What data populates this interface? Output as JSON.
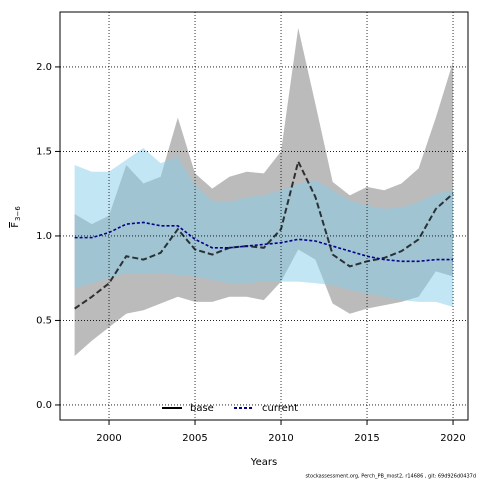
{
  "chart_data": {
    "type": "line",
    "xlabel": "Years",
    "ylabel": "F",
    "ylabel_sub": "3−6",
    "footer": "stockassessment.org, Perch_PB_most2, r14686 , git: 69d926d0437d",
    "x": [
      1998,
      1999,
      2000,
      2001,
      2002,
      2003,
      2004,
      2005,
      2006,
      2007,
      2008,
      2009,
      2010,
      2011,
      2012,
      2013,
      2014,
      2015,
      2016,
      2017,
      2018,
      2019,
      2020
    ],
    "series": [
      {
        "name": "base",
        "color": "#000000",
        "band_color": "rgba(120,120,120,0.5)",
        "values": [
          0.57,
          0.64,
          0.72,
          0.88,
          0.86,
          0.9,
          1.04,
          0.92,
          0.89,
          0.93,
          0.94,
          0.93,
          1.04,
          1.44,
          1.23,
          0.89,
          0.82,
          0.85,
          0.87,
          0.91,
          0.98,
          1.16,
          1.25
        ],
        "upper": [
          1.13,
          1.07,
          1.12,
          1.42,
          1.31,
          1.35,
          1.7,
          1.37,
          1.28,
          1.35,
          1.38,
          1.37,
          1.5,
          2.23,
          1.78,
          1.32,
          1.24,
          1.29,
          1.27,
          1.31,
          1.4,
          1.7,
          2.03
        ],
        "lower": [
          0.29,
          0.38,
          0.46,
          0.54,
          0.56,
          0.6,
          0.64,
          0.61,
          0.61,
          0.64,
          0.64,
          0.62,
          0.73,
          0.92,
          0.86,
          0.6,
          0.54,
          0.57,
          0.59,
          0.61,
          0.64,
          0.79,
          0.76
        ]
      },
      {
        "name": "current",
        "color": "#00008b",
        "band_color": "rgba(135,206,235,0.5)",
        "values": [
          0.99,
          0.99,
          1.02,
          1.07,
          1.08,
          1.06,
          1.06,
          0.98,
          0.93,
          0.93,
          0.94,
          0.95,
          0.96,
          0.98,
          0.97,
          0.94,
          0.91,
          0.88,
          0.86,
          0.85,
          0.85,
          0.86,
          0.86
        ],
        "upper": [
          1.42,
          1.38,
          1.38,
          1.45,
          1.52,
          1.43,
          1.47,
          1.3,
          1.21,
          1.2,
          1.23,
          1.24,
          1.27,
          1.31,
          1.33,
          1.27,
          1.21,
          1.18,
          1.16,
          1.17,
          1.2,
          1.25,
          1.27
        ],
        "lower": [
          0.69,
          0.72,
          0.75,
          0.78,
          0.78,
          0.78,
          0.77,
          0.76,
          0.74,
          0.72,
          0.72,
          0.73,
          0.73,
          0.73,
          0.72,
          0.71,
          0.68,
          0.66,
          0.64,
          0.62,
          0.61,
          0.61,
          0.58
        ]
      }
    ],
    "xlim": [
      1997.15,
      2020.87
    ],
    "ylim": [
      -0.089,
      2.325
    ],
    "xticks": [
      2000,
      2005,
      2010,
      2015,
      2020
    ],
    "yticks": [
      {
        "value": 0,
        "label": "0.0"
      },
      {
        "value": 0.5,
        "label": "0.5"
      },
      {
        "value": 1,
        "label": "1.0"
      },
      {
        "value": 1.5,
        "label": "1.5"
      },
      {
        "value": 2,
        "label": "2.0"
      }
    ],
    "grid": true,
    "legend": "bottom"
  }
}
